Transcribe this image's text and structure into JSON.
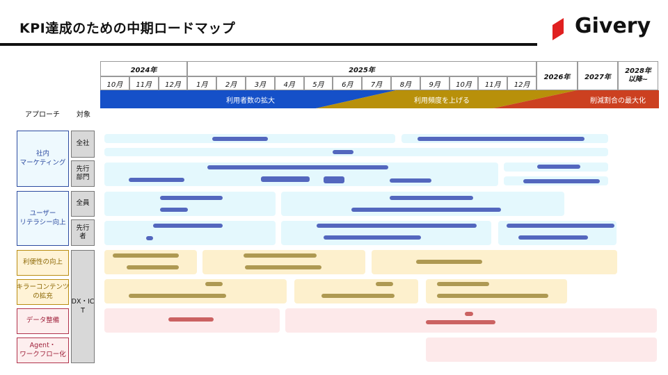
{
  "slide": {
    "title": "KPI達成のための中期ロードマップ",
    "logo_text": "Givery"
  },
  "timeline": {
    "years": [
      "2024年",
      "2025年",
      "2026年",
      "2027年",
      "2028年\n以降~"
    ],
    "months_2024": [
      "10月",
      "11月",
      "12月"
    ],
    "months_2025": [
      "1月",
      "2月",
      "3月",
      "4月",
      "5月",
      "6月",
      "7月",
      "8月",
      "9月",
      "10月",
      "11月",
      "12月"
    ]
  },
  "phases": [
    "利用者数の拡大",
    "利用頻度を上げる",
    "削減割合の最大化"
  ],
  "columns": {
    "approach": "アプローチ",
    "target": "対象"
  },
  "approaches": [
    {
      "label": "社内\nマーケティング",
      "color": "blue"
    },
    {
      "label": "ユーザー\nリテラシー向上",
      "color": "blue"
    },
    {
      "label": "利便性の向上",
      "color": "yellow"
    },
    {
      "label": "キラーコンテンツ\nの拡充",
      "color": "yellow"
    },
    {
      "label": "データ整備",
      "color": "red"
    },
    {
      "label": "Agent・\nワークフロー化",
      "color": "red"
    }
  ],
  "targets": [
    "全社",
    "先行\n部門",
    "全員",
    "先行\n者",
    "DX・IC\nT"
  ],
  "colors": {
    "phase1": "#1550c8",
    "phase2": "#b8900a",
    "phase3": "#cc4020",
    "logo_red": "#e02020"
  }
}
